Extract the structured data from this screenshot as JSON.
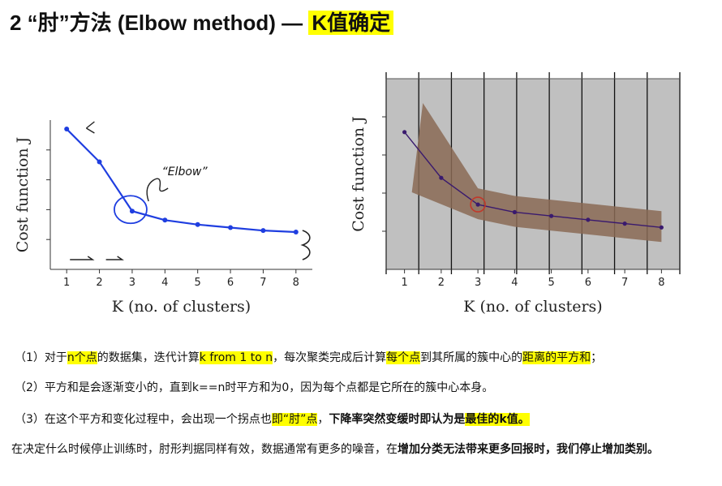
{
  "header": {
    "title_prefix": "2 “肘”方法 (Elbow method) —",
    "title_highlight": "K值确定"
  },
  "chart_data": [
    {
      "type": "line",
      "xlabel": "K (no. of clusters)",
      "ylabel": "Cost function J",
      "x": [
        1,
        2,
        3,
        4,
        5,
        6,
        7,
        8
      ],
      "xlim": [
        0.5,
        8.5
      ],
      "y": [
        0.94,
        0.72,
        0.39,
        0.33,
        0.3,
        0.28,
        0.26,
        0.25
      ],
      "ylim": [
        0,
        1
      ],
      "annotations": [
        "“Elbow”"
      ],
      "line_color": "#1f3ee0"
    },
    {
      "type": "line",
      "xlabel": "K (no. of clusters)",
      "ylabel": "Cost function J",
      "x": [
        1,
        2,
        3,
        4,
        5,
        6,
        7,
        8
      ],
      "xlim": [
        0.5,
        8.5
      ],
      "y": [
        0.72,
        0.48,
        0.34,
        0.3,
        0.28,
        0.26,
        0.24,
        0.22
      ],
      "ylim": [
        0,
        1
      ],
      "background": "#c0c0c0",
      "line_color": "#3a1a6e"
    }
  ],
  "paragraphs": {
    "p1": {
      "a": "（1）对于",
      "b": "n个点",
      "c": "的数据集，迭代计算",
      "d": "k from 1 to n",
      "e": "，每次聚类完成后计算",
      "f": "每个点",
      "g": "到其所属的簇中心的",
      "h": "距离的平方和",
      "i": "；"
    },
    "p2": "（2）平方和是会逐渐变小的，直到k==n时平方和为0，因为每个点都是它所在的簇中心本身。",
    "p3": {
      "a": "（3）在这个平方和变化过程中，会出现一个拐点也",
      "b": "即“肘”点",
      "c": "，",
      "d": "下降率突然变缓时即认为是",
      "e": "最佳的k值。"
    },
    "p4": {
      "a": "在决定什么时候停止训练时，肘形判据同样有效，数据通常有更多的噪音，在",
      "b": "增加分类无法带来更多回报时，我们停止增加类别。"
    }
  }
}
